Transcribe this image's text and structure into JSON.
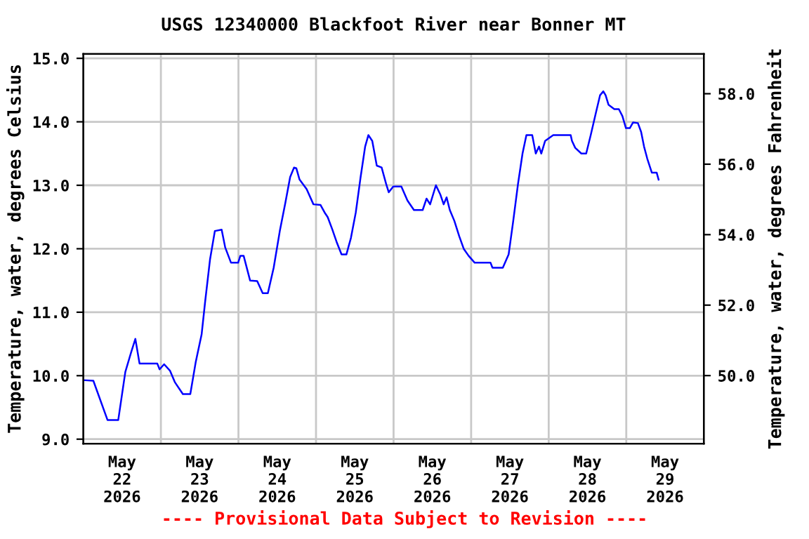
{
  "chart_data": {
    "type": "line",
    "title": "USGS 12340000 Blackfoot River near Bonner MT",
    "ylabel": "Temperature, water, degrees Celsius",
    "y2label": "Temperature, water, degrees Fahrenheit",
    "annotations": [
      "---- Provisional Data Subject to Revision ----"
    ],
    "x": [
      "2026-05-22T00:00",
      "2026-05-22T03:06",
      "2026-05-22T07:30",
      "2026-05-22T10:48",
      "2026-05-22T13:00",
      "2026-05-22T14:48",
      "2026-05-22T16:06",
      "2026-05-22T17:24",
      "2026-05-22T22:54",
      "2026-05-22T23:36",
      "2026-05-23T01:00",
      "2026-05-23T02:48",
      "2026-05-23T04:18",
      "2026-05-23T06:48",
      "2026-05-23T09:06",
      "2026-05-23T10:48",
      "2026-05-23T12:36",
      "2026-05-23T13:42",
      "2026-05-23T15:12",
      "2026-05-23T16:42",
      "2026-05-23T18:48",
      "2026-05-23T19:54",
      "2026-05-23T21:42",
      "2026-05-23T23:54",
      "2026-05-24T00:36",
      "2026-05-24T01:36",
      "2026-05-24T03:36",
      "2026-05-24T05:48",
      "2026-05-24T07:30",
      "2026-05-24T09:06",
      "2026-05-24T10:54",
      "2026-05-24T12:48",
      "2026-05-24T14:30",
      "2026-05-24T16:00",
      "2026-05-24T17:12",
      "2026-05-24T17:54",
      "2026-05-24T18:54",
      "2026-05-24T21:06",
      "2026-05-24T23:12",
      "2026-05-25T01:24",
      "2026-05-25T02:48",
      "2026-05-25T03:36",
      "2026-05-25T05:00",
      "2026-05-25T06:30",
      "2026-05-25T07:54",
      "2026-05-25T09:24",
      "2026-05-25T10:48",
      "2026-05-25T12:18",
      "2026-05-25T13:48",
      "2026-05-25T15:12",
      "2026-05-25T16:12",
      "2026-05-25T17:24",
      "2026-05-25T18:48",
      "2026-05-25T20:18",
      "2026-05-25T21:42",
      "2026-05-25T22:30",
      "2026-05-25T23:54",
      "2026-05-26T02:24",
      "2026-05-26T04:18",
      "2026-05-26T06:18",
      "2026-05-26T09:00",
      "2026-05-26T10:12",
      "2026-05-26T11:18",
      "2026-05-26T13:06",
      "2026-05-26T14:30",
      "2026-05-26T15:30",
      "2026-05-26T16:24",
      "2026-05-26T17:24",
      "2026-05-26T18:48",
      "2026-05-26T20:18",
      "2026-05-26T21:42",
      "2026-05-26T23:12",
      "2026-05-27T01:06",
      "2026-05-27T06:00",
      "2026-05-27T06:36",
      "2026-05-27T09:48",
      "2026-05-27T11:36",
      "2026-05-27T13:00",
      "2026-05-27T14:30",
      "2026-05-27T15:54",
      "2026-05-27T17:06",
      "2026-05-27T18:54",
      "2026-05-27T20:00",
      "2026-05-27T21:00",
      "2026-05-27T21:42",
      "2026-05-27T22:54",
      "2026-05-28T01:24",
      "2026-05-28T06:48",
      "2026-05-28T07:12",
      "2026-05-28T08:12",
      "2026-05-28T10:06",
      "2026-05-28T11:36",
      "2026-05-28T13:00",
      "2026-05-28T14:30",
      "2026-05-28T15:54",
      "2026-05-28T16:54",
      "2026-05-28T17:36",
      "2026-05-28T18:30",
      "2026-05-28T20:18",
      "2026-05-28T21:42",
      "2026-05-28T22:48",
      "2026-05-28T23:54",
      "2026-05-29T01:06",
      "2026-05-29T02:06",
      "2026-05-29T03:36",
      "2026-05-29T04:36",
      "2026-05-29T05:30",
      "2026-05-29T06:30",
      "2026-05-29T07:54",
      "2026-05-29T09:24",
      "2026-05-29T10:00"
    ],
    "series": [
      {
        "color": "#0000ff",
        "values": [
          9.93,
          9.92,
          9.3,
          9.3,
          10.06,
          10.37,
          10.58,
          10.19,
          10.19,
          10.1,
          10.18,
          10.08,
          9.9,
          9.71,
          9.71,
          10.22,
          10.65,
          11.17,
          11.83,
          12.28,
          12.3,
          12.02,
          11.78,
          11.78,
          11.89,
          11.89,
          11.5,
          11.49,
          11.3,
          11.3,
          11.7,
          12.28,
          12.72,
          13.13,
          13.28,
          13.27,
          13.09,
          12.94,
          12.7,
          12.69,
          12.56,
          12.5,
          12.31,
          12.09,
          11.91,
          11.91,
          12.17,
          12.57,
          13.13,
          13.61,
          13.79,
          13.7,
          13.31,
          13.28,
          13.02,
          12.89,
          12.98,
          12.98,
          12.76,
          12.61,
          12.61,
          12.79,
          12.7,
          13.0,
          12.85,
          12.7,
          12.81,
          12.61,
          12.44,
          12.2,
          12.0,
          11.89,
          11.78,
          11.78,
          11.7,
          11.7,
          11.91,
          12.43,
          13.02,
          13.5,
          13.79,
          13.79,
          13.5,
          13.61,
          13.5,
          13.7,
          13.79,
          13.79,
          13.7,
          13.59,
          13.5,
          13.5,
          13.79,
          14.12,
          14.42,
          14.48,
          14.42,
          14.27,
          14.2,
          14.2,
          14.09,
          13.9,
          13.9,
          13.99,
          13.98,
          13.84,
          13.61,
          13.42,
          13.2,
          13.2,
          13.09
        ]
      }
    ],
    "xlim": [
      "2026-05-22T00:00",
      "2026-05-30T00:00"
    ],
    "xticks": [
      {
        "value": "2026-05-22T12:00",
        "label": "May\n22\n2026"
      },
      {
        "value": "2026-05-23T12:00",
        "label": "May\n23\n2026"
      },
      {
        "value": "2026-05-24T12:00",
        "label": "May\n24\n2026"
      },
      {
        "value": "2026-05-25T12:00",
        "label": "May\n25\n2026"
      },
      {
        "value": "2026-05-26T12:00",
        "label": "May\n26\n2026"
      },
      {
        "value": "2026-05-27T12:00",
        "label": "May\n27\n2026"
      },
      {
        "value": "2026-05-28T12:00",
        "label": "May\n28\n2026"
      },
      {
        "value": "2026-05-29T12:00",
        "label": "May\n29\n2026"
      },
      {
        "value": "2026-05-23T00:00",
        "label": null
      },
      {
        "value": "2026-05-24T00:00",
        "label": null
      },
      {
        "value": "2026-05-25T00:00",
        "label": null
      },
      {
        "value": "2026-05-26T00:00",
        "label": null
      },
      {
        "value": "2026-05-27T00:00",
        "label": null
      },
      {
        "value": "2026-05-28T00:00",
        "label": null
      },
      {
        "value": "2026-05-29T00:00",
        "label": null
      }
    ],
    "ylim": [
      8.93,
      15.07
    ],
    "yticks": [
      {
        "value": 9,
        "label": "9.0"
      },
      {
        "value": 10,
        "label": "10.0"
      },
      {
        "value": 11,
        "label": "11.0"
      },
      {
        "value": 12,
        "label": "12.0"
      },
      {
        "value": 13,
        "label": "13.0"
      },
      {
        "value": 14,
        "label": "14.0"
      },
      {
        "value": 15,
        "label": "15.0"
      }
    ],
    "y2lim": [
      48.07,
      59.13
    ],
    "y2ticks": [
      {
        "value": 50,
        "label": "50.0"
      },
      {
        "value": 52,
        "label": "52.0"
      },
      {
        "value": 54,
        "label": "54.0"
      },
      {
        "value": 56,
        "label": "56.0"
      },
      {
        "value": 58,
        "label": "58.0"
      }
    ],
    "grid": true,
    "legend": false,
    "marker": "none",
    "line_style": "solid"
  }
}
